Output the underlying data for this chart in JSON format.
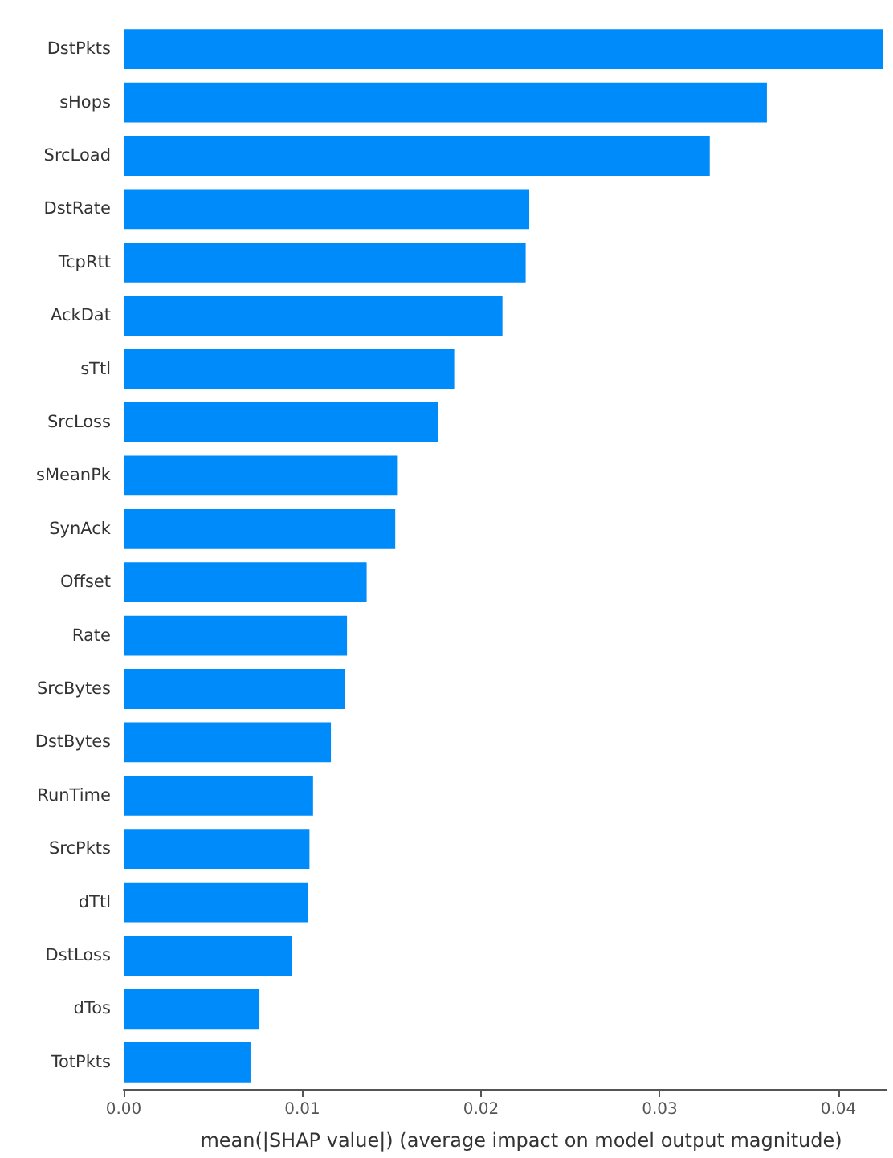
{
  "chart_data": {
    "type": "bar",
    "orientation": "horizontal",
    "xlabel": "mean(|SHAP value|) (average impact on model output magnitude)",
    "categories": [
      "DstPkts",
      "sHops",
      "SrcLoad",
      "DstRate",
      "TcpRtt",
      "AckDat",
      "sTtl",
      "SrcLoss",
      "sMeanPk",
      "SynAck",
      "Offset",
      "Rate",
      "SrcBytes",
      "DstBytes",
      "RunTime",
      "SrcPkts",
      "dTtl",
      "DstLoss",
      "dTos",
      "TotPkts"
    ],
    "values": [
      0.0425,
      0.036,
      0.0328,
      0.0227,
      0.0225,
      0.0212,
      0.0185,
      0.0176,
      0.0153,
      0.0152,
      0.0136,
      0.0125,
      0.0124,
      0.0116,
      0.0106,
      0.0104,
      0.0103,
      0.0094,
      0.0076,
      0.0071
    ],
    "color": "#008bfb",
    "xlim": [
      0,
      0.0427
    ],
    "xticks": [
      {
        "value": 0,
        "label": "0.00"
      },
      {
        "value": 0.01,
        "label": "0.01"
      },
      {
        "value": 0.02,
        "label": "0.02"
      },
      {
        "value": 0.03,
        "label": "0.03"
      },
      {
        "value": 0.04,
        "label": "0.04"
      }
    ]
  }
}
